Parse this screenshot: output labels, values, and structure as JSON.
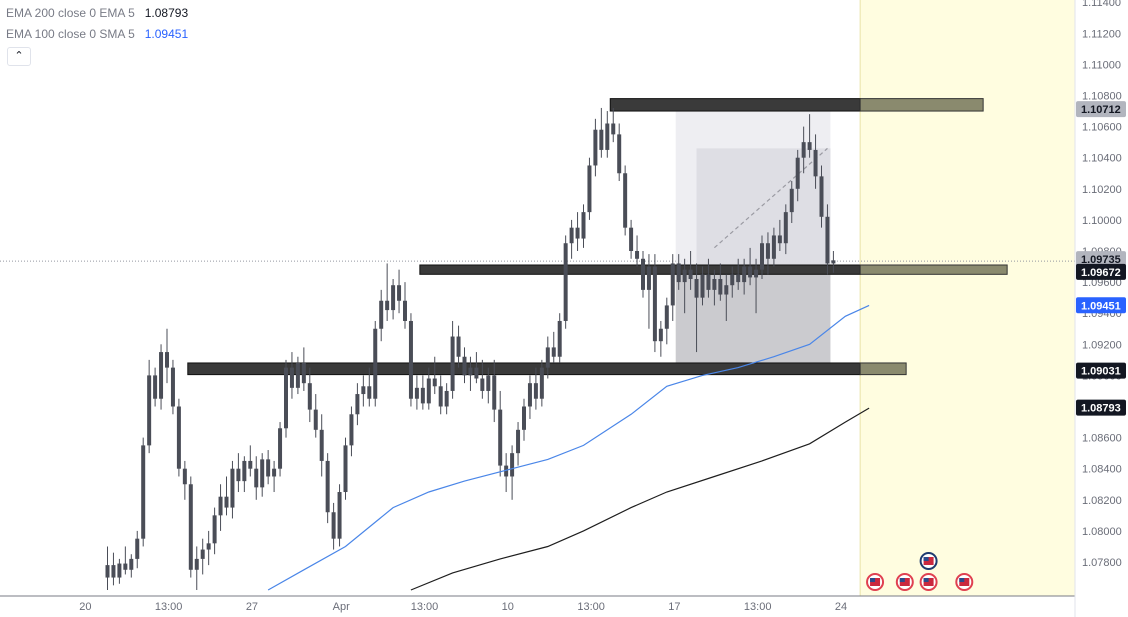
{
  "legend": {
    "ema200_label": "EMA 200 close 0 EMA 5",
    "ema200_value": "1.08793",
    "ema100_label": "EMA 100 close 0 SMA 5",
    "ema100_value": "1.09451",
    "collapse_icon": "chevron-up-icon"
  },
  "colors": {
    "ema100": "#4a86e8",
    "ema200": "#1e1e1e",
    "candles": "#4a4d57",
    "zones": "#3a3a3a",
    "future_area": "#fffde0",
    "ema100_badge": "#2962ff",
    "dark_badge": "#131722",
    "grey_badge": "#b2b5be"
  },
  "chart_data": {
    "type": "candlestick",
    "y_axis": {
      "ylim": [
        1.0762,
        1.1146
      ],
      "ticks": [
        "1.07800",
        "1.08000",
        "1.08200",
        "1.08400",
        "1.08600",
        "1.08800",
        "1.09000",
        "1.09200",
        "1.09400",
        "1.09600",
        "1.09800",
        "1.10000",
        "1.10200",
        "1.10400",
        "1.10600",
        "1.10800",
        "1.11000",
        "1.11200",
        "1.11400"
      ]
    },
    "x_axis": {
      "ticks": [
        "20",
        "13:00",
        "27",
        "Apr",
        "13:00",
        "10",
        "13:00",
        "17",
        "13:00",
        "24"
      ],
      "tick_bars": [
        3,
        17,
        31,
        46,
        60,
        74,
        88,
        102,
        116,
        130
      ]
    },
    "price_badges": [
      {
        "label": "1.10712",
        "value": 1.10712,
        "style": "grey"
      },
      {
        "label": "1.09735",
        "value": 1.09735,
        "style": "grey"
      },
      {
        "label": "1.09672",
        "value": 1.09672,
        "style": "dark"
      },
      {
        "label": "1.09451",
        "value": 1.09451,
        "style": "blue"
      },
      {
        "label": "1.09031",
        "value": 1.09031,
        "style": "dark"
      },
      {
        "label": "1.08793",
        "value": 1.08793,
        "style": "dark"
      }
    ],
    "zones": [
      {
        "x_start": 85,
        "y_low": 1.107,
        "y_high": 1.1078
      },
      {
        "x_start": 53,
        "y_low": 1.0965,
        "y_high": 1.0971
      },
      {
        "x_start": 14,
        "y_low": 1.09005,
        "y_high": 1.0908
      }
    ],
    "position_tool": {
      "x_start": 96,
      "x_end": 121,
      "entry": 1.0968,
      "target": 1.1071,
      "stop": 1.0901,
      "inner_x_start": 99,
      "inner_top": 1.1046
    },
    "current_price_line": 1.09735,
    "future_bar_start": 127,
    "event_markers": [
      {
        "bar": 129,
        "row": 0
      },
      {
        "bar": 134,
        "row": 0
      },
      {
        "bar": 138,
        "row": 0
      },
      {
        "bar": 138,
        "row": 1
      },
      {
        "bar": 144,
        "row": 0
      }
    ],
    "candles": [
      {
        "o": 1.077,
        "h": 1.079,
        "l": 1.0762,
        "c": 1.0778
      },
      {
        "o": 1.0778,
        "h": 1.0786,
        "l": 1.0765,
        "c": 1.077
      },
      {
        "o": 1.077,
        "h": 1.0782,
        "l": 1.0766,
        "c": 1.0779
      },
      {
        "o": 1.0779,
        "h": 1.079,
        "l": 1.0772,
        "c": 1.0775
      },
      {
        "o": 1.0775,
        "h": 1.0785,
        "l": 1.077,
        "c": 1.0782
      },
      {
        "o": 1.0782,
        "h": 1.08,
        "l": 1.0776,
        "c": 1.0795
      },
      {
        "o": 1.0795,
        "h": 1.086,
        "l": 1.079,
        "c": 1.0855
      },
      {
        "o": 1.0855,
        "h": 1.091,
        "l": 1.085,
        "c": 1.09
      },
      {
        "o": 1.09,
        "h": 1.0905,
        "l": 1.088,
        "c": 1.0885
      },
      {
        "o": 1.0885,
        "h": 1.092,
        "l": 1.0878,
        "c": 1.0915
      },
      {
        "o": 1.0915,
        "h": 1.093,
        "l": 1.0895,
        "c": 1.0905
      },
      {
        "o": 1.0905,
        "h": 1.091,
        "l": 1.0875,
        "c": 1.088
      },
      {
        "o": 1.088,
        "h": 1.0885,
        "l": 1.0835,
        "c": 1.084
      },
      {
        "o": 1.084,
        "h": 1.0845,
        "l": 1.082,
        "c": 1.083
      },
      {
        "o": 1.083,
        "h": 1.0835,
        "l": 1.077,
        "c": 1.0775
      },
      {
        "o": 1.0775,
        "h": 1.079,
        "l": 1.0762,
        "c": 1.0782
      },
      {
        "o": 1.0782,
        "h": 1.0795,
        "l": 1.0772,
        "c": 1.0788
      },
      {
        "o": 1.0788,
        "h": 1.08,
        "l": 1.0778,
        "c": 1.0792
      },
      {
        "o": 1.0792,
        "h": 1.0815,
        "l": 1.0785,
        "c": 1.081
      },
      {
        "o": 1.081,
        "h": 1.083,
        "l": 1.08,
        "c": 1.0822
      },
      {
        "o": 1.0822,
        "h": 1.0835,
        "l": 1.081,
        "c": 1.0815
      },
      {
        "o": 1.0815,
        "h": 1.0845,
        "l": 1.0808,
        "c": 1.084
      },
      {
        "o": 1.084,
        "h": 1.085,
        "l": 1.0825,
        "c": 1.0832
      },
      {
        "o": 1.0832,
        "h": 1.0848,
        "l": 1.0825,
        "c": 1.0845
      },
      {
        "o": 1.0845,
        "h": 1.0855,
        "l": 1.0835,
        "c": 1.084
      },
      {
        "o": 1.084,
        "h": 1.0848,
        "l": 1.082,
        "c": 1.0828
      },
      {
        "o": 1.0828,
        "h": 1.085,
        "l": 1.0822,
        "c": 1.0846
      },
      {
        "o": 1.0846,
        "h": 1.0852,
        "l": 1.083,
        "c": 1.0835
      },
      {
        "o": 1.0835,
        "h": 1.0845,
        "l": 1.0825,
        "c": 1.084
      },
      {
        "o": 1.084,
        "h": 1.087,
        "l": 1.0835,
        "c": 1.0866
      },
      {
        "o": 1.0866,
        "h": 1.091,
        "l": 1.086,
        "c": 1.0905
      },
      {
        "o": 1.0905,
        "h": 1.0915,
        "l": 1.0885,
        "c": 1.0892
      },
      {
        "o": 1.0892,
        "h": 1.0912,
        "l": 1.0888,
        "c": 1.0908
      },
      {
        "o": 1.0908,
        "h": 1.0918,
        "l": 1.089,
        "c": 1.0895
      },
      {
        "o": 1.0895,
        "h": 1.0905,
        "l": 1.087,
        "c": 1.0878
      },
      {
        "o": 1.0878,
        "h": 1.0888,
        "l": 1.086,
        "c": 1.0865
      },
      {
        "o": 1.0865,
        "h": 1.0875,
        "l": 1.0835,
        "c": 1.0845
      },
      {
        "o": 1.0845,
        "h": 1.085,
        "l": 1.0805,
        "c": 1.0812
      },
      {
        "o": 1.0812,
        "h": 1.0818,
        "l": 1.0788,
        "c": 1.0795
      },
      {
        "o": 1.0795,
        "h": 1.083,
        "l": 1.079,
        "c": 1.0825
      },
      {
        "o": 1.0825,
        "h": 1.086,
        "l": 1.082,
        "c": 1.0855
      },
      {
        "o": 1.0855,
        "h": 1.088,
        "l": 1.0848,
        "c": 1.0875
      },
      {
        "o": 1.0875,
        "h": 1.0895,
        "l": 1.0868,
        "c": 1.0888
      },
      {
        "o": 1.0888,
        "h": 1.09,
        "l": 1.088,
        "c": 1.0893
      },
      {
        "o": 1.0893,
        "h": 1.0905,
        "l": 1.088,
        "c": 1.0885
      },
      {
        "o": 1.0885,
        "h": 1.0935,
        "l": 1.088,
        "c": 1.093
      },
      {
        "o": 1.093,
        "h": 1.0955,
        "l": 1.0922,
        "c": 1.0948
      },
      {
        "o": 1.0948,
        "h": 1.0972,
        "l": 1.0935,
        "c": 1.0942
      },
      {
        "o": 1.0942,
        "h": 1.0962,
        "l": 1.0936,
        "c": 1.0958
      },
      {
        "o": 1.0958,
        "h": 1.0968,
        "l": 1.094,
        "c": 1.0948
      },
      {
        "o": 1.0948,
        "h": 1.096,
        "l": 1.093,
        "c": 1.0935
      },
      {
        "o": 1.0935,
        "h": 1.094,
        "l": 1.088,
        "c": 1.0885
      },
      {
        "o": 1.0885,
        "h": 1.09,
        "l": 1.0878,
        "c": 1.0892
      },
      {
        "o": 1.0892,
        "h": 1.09,
        "l": 1.0878,
        "c": 1.0882
      },
      {
        "o": 1.0882,
        "h": 1.0905,
        "l": 1.0878,
        "c": 1.0898
      },
      {
        "o": 1.0898,
        "h": 1.0912,
        "l": 1.0888,
        "c": 1.0893
      },
      {
        "o": 1.0893,
        "h": 1.09,
        "l": 1.0875,
        "c": 1.088
      },
      {
        "o": 1.088,
        "h": 1.0895,
        "l": 1.0875,
        "c": 1.089
      },
      {
        "o": 1.089,
        "h": 1.0935,
        "l": 1.0885,
        "c": 1.0925
      },
      {
        "o": 1.0925,
        "h": 1.0932,
        "l": 1.0905,
        "c": 1.0912
      },
      {
        "o": 1.0912,
        "h": 1.0918,
        "l": 1.0895,
        "c": 1.09
      },
      {
        "o": 1.09,
        "h": 1.0912,
        "l": 1.089,
        "c": 1.0905
      },
      {
        "o": 1.0905,
        "h": 1.0915,
        "l": 1.0895,
        "c": 1.0898
      },
      {
        "o": 1.0898,
        "h": 1.091,
        "l": 1.0885,
        "c": 1.089
      },
      {
        "o": 1.089,
        "h": 1.0905,
        "l": 1.0882,
        "c": 1.09
      },
      {
        "o": 1.09,
        "h": 1.091,
        "l": 1.087,
        "c": 1.0878
      },
      {
        "o": 1.0878,
        "h": 1.089,
        "l": 1.0835,
        "c": 1.0842
      },
      {
        "o": 1.0842,
        "h": 1.085,
        "l": 1.0825,
        "c": 1.0835
      },
      {
        "o": 1.0835,
        "h": 1.0855,
        "l": 1.082,
        "c": 1.085
      },
      {
        "o": 1.085,
        "h": 1.087,
        "l": 1.0842,
        "c": 1.0865
      },
      {
        "o": 1.0865,
        "h": 1.0885,
        "l": 1.0858,
        "c": 1.088
      },
      {
        "o": 1.088,
        "h": 1.09,
        "l": 1.0872,
        "c": 1.0895
      },
      {
        "o": 1.0895,
        "h": 1.0905,
        "l": 1.0878,
        "c": 1.0885
      },
      {
        "o": 1.0885,
        "h": 1.091,
        "l": 1.088,
        "c": 1.0905
      },
      {
        "o": 1.0905,
        "h": 1.0925,
        "l": 1.0898,
        "c": 1.0918
      },
      {
        "o": 1.0918,
        "h": 1.0928,
        "l": 1.0908,
        "c": 1.0912
      },
      {
        "o": 1.0912,
        "h": 1.094,
        "l": 1.0908,
        "c": 1.0935
      },
      {
        "o": 1.0935,
        "h": 1.099,
        "l": 1.093,
        "c": 1.0985
      },
      {
        "o": 1.0985,
        "h": 1.1,
        "l": 1.0975,
        "c": 1.0995
      },
      {
        "o": 1.0995,
        "h": 1.1005,
        "l": 1.098,
        "c": 1.0988
      },
      {
        "o": 1.0988,
        "h": 1.101,
        "l": 1.0982,
        "c": 1.1005
      },
      {
        "o": 1.1005,
        "h": 1.104,
        "l": 1.1,
        "c": 1.1035
      },
      {
        "o": 1.1035,
        "h": 1.1065,
        "l": 1.1028,
        "c": 1.1058
      },
      {
        "o": 1.1058,
        "h": 1.1072,
        "l": 1.104,
        "c": 1.1045
      },
      {
        "o": 1.1045,
        "h": 1.107,
        "l": 1.104,
        "c": 1.1062
      },
      {
        "o": 1.1062,
        "h": 1.1072,
        "l": 1.105,
        "c": 1.1055
      },
      {
        "o": 1.1055,
        "h": 1.1062,
        "l": 1.1025,
        "c": 1.103
      },
      {
        "o": 1.103,
        "h": 1.1035,
        "l": 1.099,
        "c": 1.0995
      },
      {
        "o": 1.0995,
        "h": 1.1,
        "l": 1.0975,
        "c": 1.098
      },
      {
        "o": 1.098,
        "h": 1.099,
        "l": 1.097,
        "c": 1.0975
      },
      {
        "o": 1.0975,
        "h": 1.098,
        "l": 1.095,
        "c": 1.0955
      },
      {
        "o": 1.0955,
        "h": 1.0978,
        "l": 1.093,
        "c": 1.097
      },
      {
        "o": 1.097,
        "h": 1.0978,
        "l": 1.0915,
        "c": 1.0922
      },
      {
        "o": 1.0922,
        "h": 1.0935,
        "l": 1.0912,
        "c": 1.093
      },
      {
        "o": 1.093,
        "h": 1.095,
        "l": 1.092,
        "c": 1.0945
      },
      {
        "o": 1.0945,
        "h": 1.0978,
        "l": 1.0935,
        "c": 1.0972
      },
      {
        "o": 1.0972,
        "h": 1.0978,
        "l": 1.0955,
        "c": 1.096
      },
      {
        "o": 1.096,
        "h": 1.0975,
        "l": 1.094,
        "c": 1.0968
      },
      {
        "o": 1.0968,
        "h": 1.098,
        "l": 1.0955,
        "c": 1.0962
      },
      {
        "o": 1.0962,
        "h": 1.0972,
        "l": 1.0915,
        "c": 1.095
      },
      {
        "o": 1.095,
        "h": 1.097,
        "l": 1.0945,
        "c": 1.0965
      },
      {
        "o": 1.0965,
        "h": 1.0975,
        "l": 1.095,
        "c": 1.0955
      },
      {
        "o": 1.0955,
        "h": 1.0968,
        "l": 1.0945,
        "c": 1.0962
      },
      {
        "o": 1.0962,
        "h": 1.0972,
        "l": 1.0948,
        "c": 1.0952
      },
      {
        "o": 1.0952,
        "h": 1.0965,
        "l": 1.0935,
        "c": 1.0958
      },
      {
        "o": 1.0958,
        "h": 1.097,
        "l": 1.095,
        "c": 1.0965
      },
      {
        "o": 1.0965,
        "h": 1.0975,
        "l": 1.0955,
        "c": 1.096
      },
      {
        "o": 1.096,
        "h": 1.0975,
        "l": 1.0952,
        "c": 1.097
      },
      {
        "o": 1.097,
        "h": 1.0982,
        "l": 1.0958,
        "c": 1.0963
      },
      {
        "o": 1.0963,
        "h": 1.0975,
        "l": 1.094,
        "c": 1.0968
      },
      {
        "o": 1.0968,
        "h": 1.099,
        "l": 1.0962,
        "c": 1.0985
      },
      {
        "o": 1.0985,
        "h": 1.0992,
        "l": 1.0965,
        "c": 1.0975
      },
      {
        "o": 1.0975,
        "h": 1.0995,
        "l": 1.097,
        "c": 1.099
      },
      {
        "o": 1.099,
        "h": 1.1,
        "l": 1.098,
        "c": 1.0985
      },
      {
        "o": 1.0985,
        "h": 1.101,
        "l": 1.0978,
        "c": 1.1005
      },
      {
        "o": 1.1005,
        "h": 1.1025,
        "l": 1.0998,
        "c": 1.102
      },
      {
        "o": 1.102,
        "h": 1.1045,
        "l": 1.1012,
        "c": 1.104
      },
      {
        "o": 1.104,
        "h": 1.106,
        "l": 1.103,
        "c": 1.105
      },
      {
        "o": 1.105,
        "h": 1.1068,
        "l": 1.104,
        "c": 1.1045
      },
      {
        "o": 1.1045,
        "h": 1.1055,
        "l": 1.102,
        "c": 1.1028
      },
      {
        "o": 1.1028,
        "h": 1.1035,
        "l": 1.0995,
        "c": 1.1002
      },
      {
        "o": 1.1002,
        "h": 1.101,
        "l": 1.0965,
        "c": 1.0972
      },
      {
        "o": 1.0972,
        "h": 1.098,
        "l": 1.0966,
        "c": 1.0974
      }
    ],
    "ema100": [
      {
        "bar": 27,
        "y": 1.0762
      },
      {
        "bar": 33,
        "y": 1.0775
      },
      {
        "bar": 40,
        "y": 1.079
      },
      {
        "bar": 48,
        "y": 1.0815
      },
      {
        "bar": 54,
        "y": 1.0825
      },
      {
        "bar": 60,
        "y": 1.0832
      },
      {
        "bar": 68,
        "y": 1.084
      },
      {
        "bar": 74,
        "y": 1.0846
      },
      {
        "bar": 80,
        "y": 1.0855
      },
      {
        "bar": 88,
        "y": 1.0875
      },
      {
        "bar": 94,
        "y": 1.0893
      },
      {
        "bar": 100,
        "y": 1.09
      },
      {
        "bar": 106,
        "y": 1.0905
      },
      {
        "bar": 112,
        "y": 1.0912
      },
      {
        "bar": 118,
        "y": 1.092
      },
      {
        "bar": 124,
        "y": 1.0938
      },
      {
        "bar": 128,
        "y": 1.0945
      }
    ],
    "ema200": [
      {
        "bar": 51,
        "y": 1.0762
      },
      {
        "bar": 58,
        "y": 1.0773
      },
      {
        "bar": 66,
        "y": 1.0782
      },
      {
        "bar": 74,
        "y": 1.079
      },
      {
        "bar": 80,
        "y": 1.08
      },
      {
        "bar": 88,
        "y": 1.0815
      },
      {
        "bar": 94,
        "y": 1.0825
      },
      {
        "bar": 102,
        "y": 1.0835
      },
      {
        "bar": 110,
        "y": 1.0845
      },
      {
        "bar": 118,
        "y": 1.0856
      },
      {
        "bar": 124,
        "y": 1.087
      },
      {
        "bar": 128,
        "y": 1.0879
      }
    ]
  }
}
